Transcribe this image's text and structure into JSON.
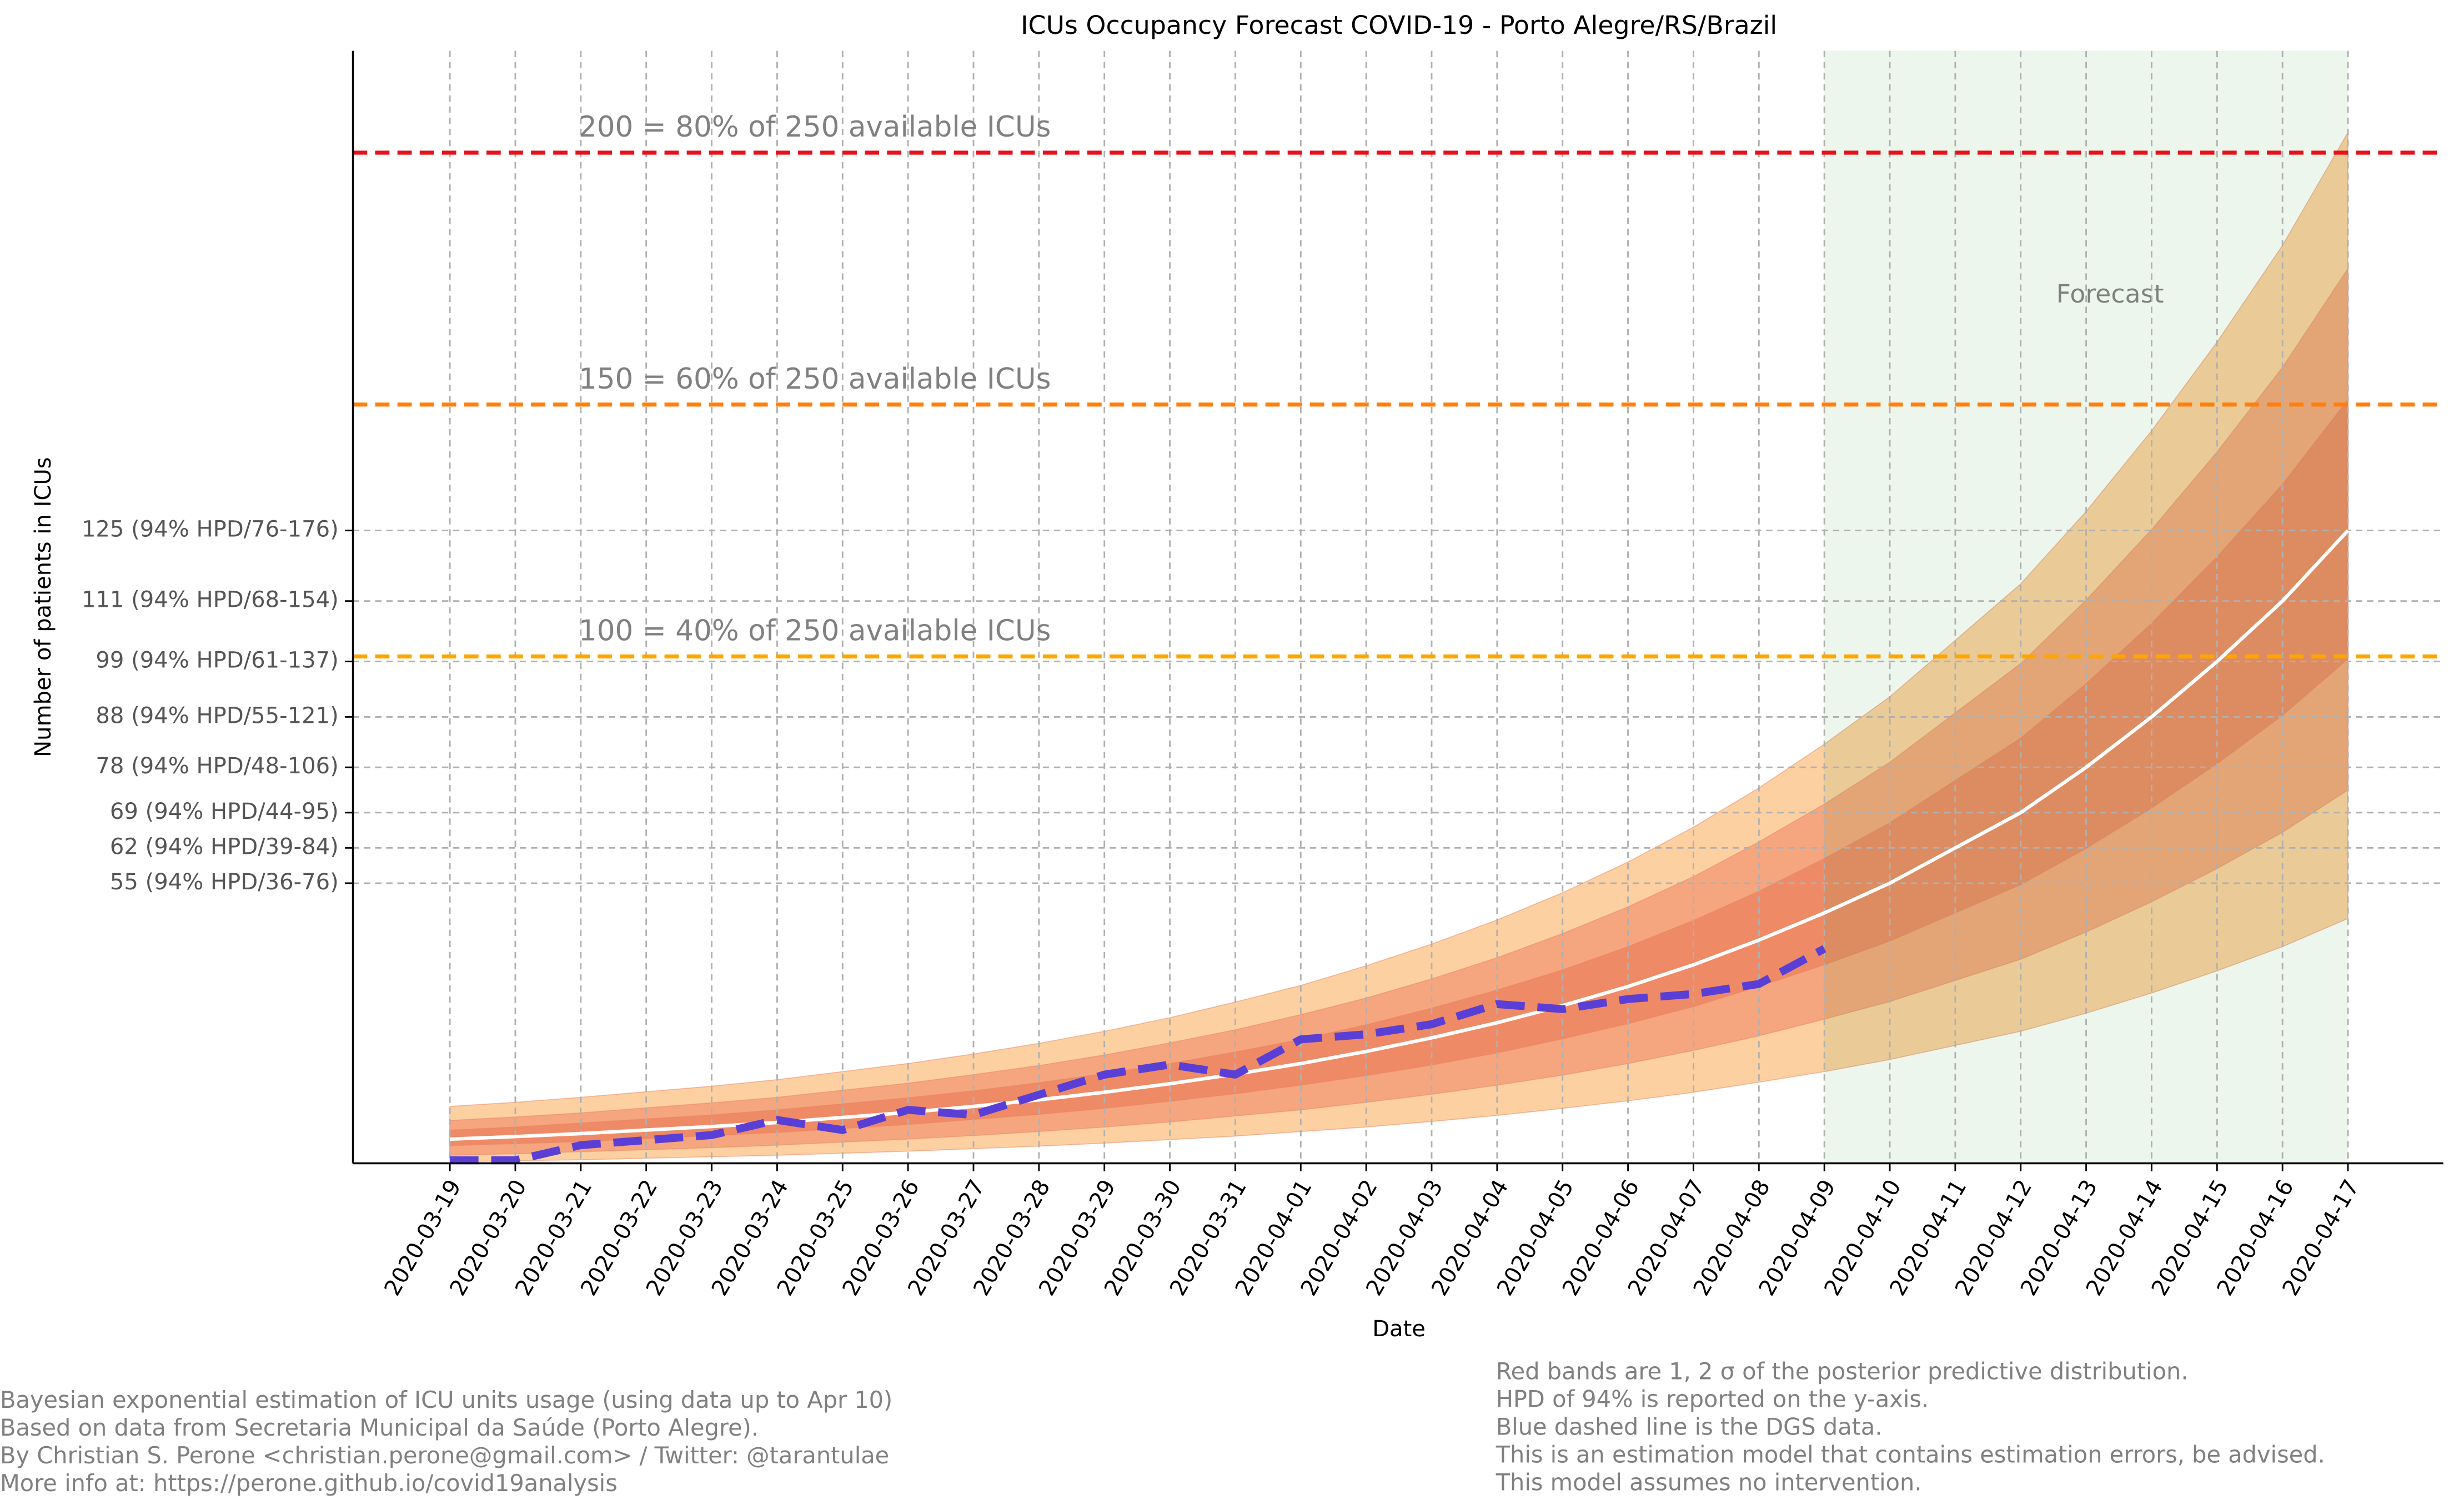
{
  "chart_data": {
    "type": "line",
    "title": "ICUs Occupancy Forecast COVID-19 - Porto Alegre/RS/Brazil",
    "x_label": "Date",
    "y_label": "Number of patients in ICUs",
    "categories": [
      "2020-03-19",
      "2020-03-20",
      "2020-03-21",
      "2020-03-22",
      "2020-03-23",
      "2020-03-24",
      "2020-03-25",
      "2020-03-26",
      "2020-03-27",
      "2020-03-28",
      "2020-03-29",
      "2020-03-30",
      "2020-03-31",
      "2020-04-01",
      "2020-04-02",
      "2020-04-03",
      "2020-04-04",
      "2020-04-05",
      "2020-04-06",
      "2020-04-07",
      "2020-04-08",
      "2020-04-09",
      "2020-04-10",
      "2020-04-11",
      "2020-04-12",
      "2020-04-13",
      "2020-04-14",
      "2020-04-15",
      "2020-04-16",
      "2020-04-17"
    ],
    "ylim": [
      -0.6,
      220.2
    ],
    "yticks": [
      {
        "value": 55,
        "label": "55 (94% HPD/36-76)"
      },
      {
        "value": 62,
        "label": "62 (94% HPD/39-84)"
      },
      {
        "value": 69,
        "label": "69 (94% HPD/44-95)"
      },
      {
        "value": 78,
        "label": "78 (94% HPD/48-106)"
      },
      {
        "value": 88,
        "label": "88 (94% HPD/55-121)"
      },
      {
        "value": 99,
        "label": "99 (94% HPD/61-137)"
      },
      {
        "value": 111,
        "label": "111 (94% HPD/68-154)"
      },
      {
        "value": 125,
        "label": "125 (94% HPD/76-176)"
      }
    ],
    "grid": true,
    "bands": [
      {
        "color": "#fdd0a2",
        "upper": [
          10.7,
          11.5,
          12.5,
          13.6,
          14.7,
          16.0,
          17.6,
          19.2,
          21.1,
          23.2,
          25.6,
          28.3,
          31.4,
          34.7,
          38.6,
          42.9,
          47.7,
          53.1,
          59.2,
          66.1,
          73.9,
          82.6,
          92,
          103.2,
          114.4,
          128.8,
          144.8,
          162.4,
          181.6,
          204
        ],
        "lower": [
          -0.3,
          -0.1,
          0.1,
          0.4,
          0.7,
          1.0,
          1.4,
          1.8,
          2.3,
          2.8,
          3.4,
          4.1,
          4.8,
          5.7,
          6.6,
          7.7,
          8.9,
          10.3,
          11.8,
          13.5,
          15.5,
          17.6,
          20,
          22.8,
          25.6,
          29.2,
          33.2,
          37.6,
          42.4,
          48
        ]
      },
      {
        "color": "#f6a67e",
        "upper": [
          7.9,
          8.6,
          9.4,
          10.4,
          11.4,
          12.5,
          13.9,
          15.3,
          17.0,
          18.8,
          20.9,
          23.3,
          25.9,
          28.9,
          32.2,
          36.0,
          40.2,
          45.0,
          50.3,
          56.3,
          63.2,
          70.7,
          79,
          88.8,
          98.6,
          111.2,
          125.2,
          140.6,
          157.4,
          177
        ],
        "lower": [
          1.0,
          1.3,
          1.7,
          2.1,
          2.5,
          3.0,
          3.6,
          4.2,
          4.9,
          5.7,
          6.6,
          7.6,
          8.8,
          10.0,
          11.5,
          13.1,
          14.9,
          16.9,
          19.2,
          21.8,
          24.7,
          28.0,
          31.5,
          35.7,
          39.9,
          45.3,
          51.3,
          57.9,
          65.1,
          73.5
        ]
      },
      {
        "color": "#ef8a66",
        "upper": [
          6.0,
          6.6,
          7.4,
          8.2,
          9.0,
          10.0,
          11.2,
          12.4,
          13.8,
          15.4,
          17.2,
          19.2,
          21.5,
          24.0,
          26.9,
          30.2,
          33.8,
          37.8,
          42.4,
          47.6,
          53.4,
          59.9,
          67,
          75.4,
          83.8,
          94.6,
          106.6,
          119.8,
          134.2,
          151
        ],
        "lower": [
          2.9,
          3.3,
          3.7,
          4.3,
          4.9,
          5.5,
          6.3,
          7.1,
          8.1,
          9.1,
          10.3,
          11.7,
          13.2,
          14.9,
          16.8,
          18.9,
          21.3,
          24.1,
          27.1,
          30.5,
          34.5,
          38.8,
          43.5,
          49.1,
          54.7,
          61.9,
          69.9,
          78.7,
          88.3,
          99.5
        ]
      }
    ],
    "series": [
      {
        "color": "#ffffff",
        "dashed": false,
        "values": [
          4.2,
          4.7,
          5.3,
          6.0,
          6.7,
          7.5,
          8.5,
          9.5,
          10.7,
          12.0,
          13.5,
          15.2,
          17.1,
          19.2,
          21.6,
          24.3,
          27.3,
          30.7,
          34.5,
          38.8,
          43.7,
          49.1,
          55,
          62,
          69,
          78,
          88,
          99,
          111,
          125
        ]
      },
      {
        "color": "#5a3fd6",
        "dashed": true,
        "values": [
          0,
          0,
          3,
          4,
          5,
          8,
          6,
          10,
          9,
          13,
          17,
          19,
          17,
          24,
          25,
          27,
          31,
          30,
          32,
          33,
          35,
          42,
          null,
          null,
          null,
          null,
          null,
          null,
          null,
          null
        ]
      }
    ],
    "reference_lines": [
      {
        "value": 200,
        "color": "#e8101a",
        "label": "200 = 80% of 250 available ICUs"
      },
      {
        "value": 150,
        "color": "#ff7f0e",
        "label": "150 = 60% of 250 available ICUs"
      },
      {
        "value": 100,
        "color": "#ffa500",
        "label": "100 = 40% of 250 available ICUs"
      }
    ],
    "forecast_region": {
      "start": "2020-04-09",
      "end": "2020-04-17",
      "label": "Forecast",
      "color": "#2ca02c"
    },
    "notes_left": [
      "Bayesian exponential estimation of ICU units usage (using data up to Apr 10)",
      "Based on data from Secretaria Municipal da Saúde (Porto Alegre).",
      "By Christian S. Perone <christian.perone@gmail.com> / Twitter: @tarantulae",
      "More info at: https://perone.github.io/covid19analysis"
    ],
    "notes_right": [
      "Red bands are 1, 2 σ of the posterior predictive distribution.",
      "HPD of 94% is reported on the y-axis.",
      "Blue dashed line is the DGS data.",
      "This is an estimation model that contains estimation errors, be advised.",
      "This model assumes no intervention."
    ]
  }
}
